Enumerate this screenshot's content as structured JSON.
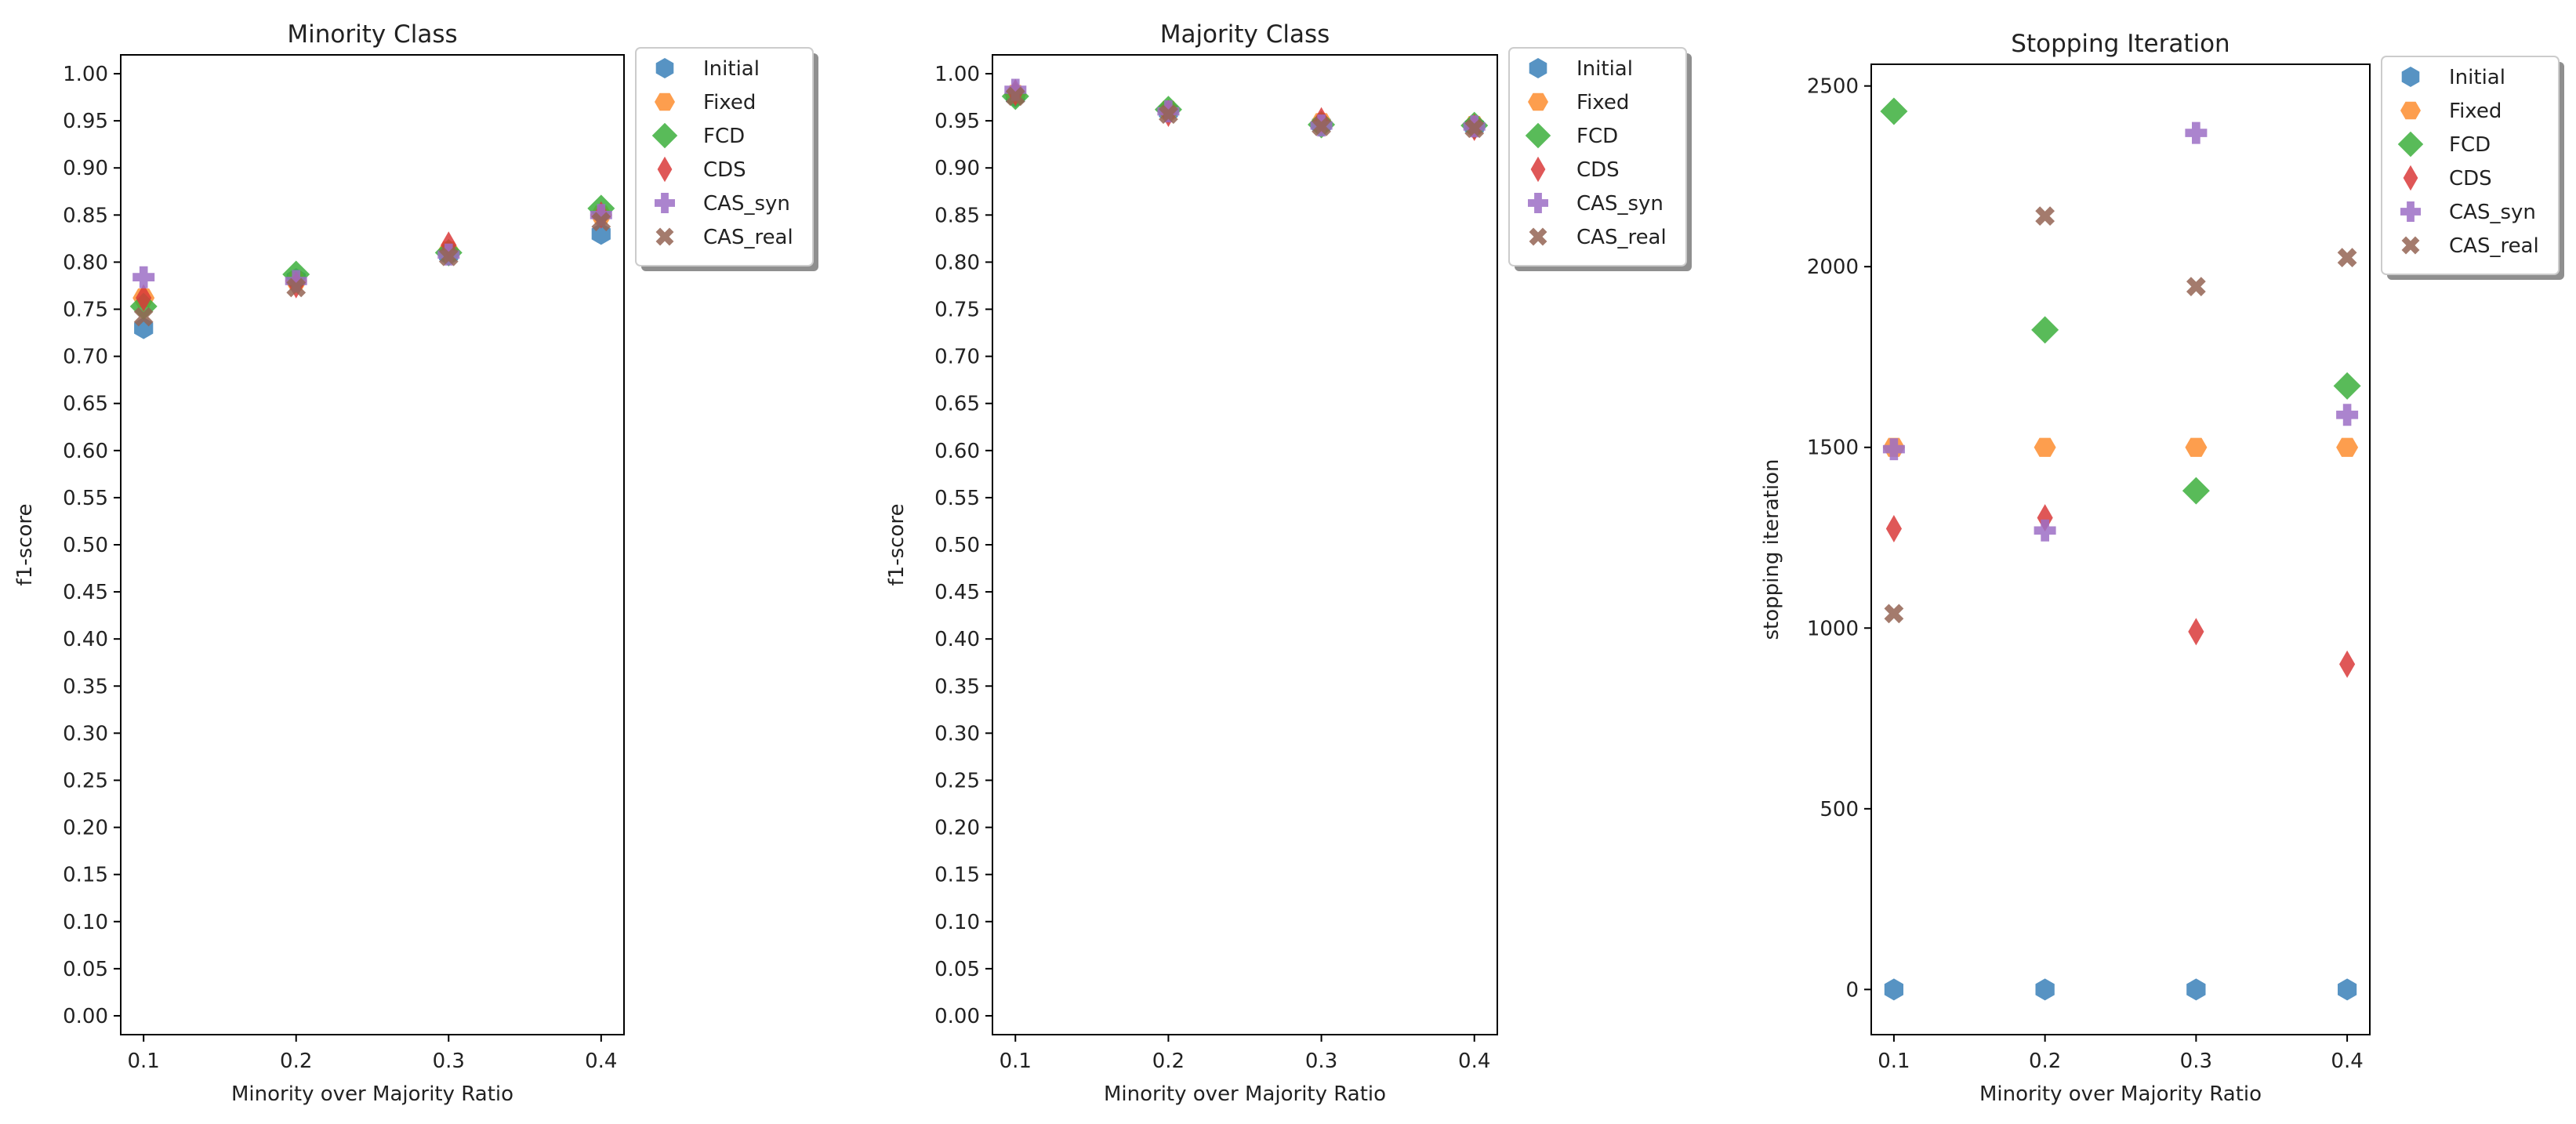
{
  "figure": {
    "marker_order": [
      "Initial",
      "Fixed",
      "FCD",
      "CDS",
      "CAS_syn",
      "CAS_real"
    ]
  },
  "styles": {
    "Initial": {
      "color": "#3a80b8",
      "marker": "hexagon-pointy"
    },
    "Fixed": {
      "color": "#fd8d2f",
      "marker": "hexagon-flat"
    },
    "FCD": {
      "color": "#3caf3c",
      "marker": "diamond"
    },
    "CDS": {
      "color": "#d93a3a",
      "marker": "thin-diamond"
    },
    "CAS_syn": {
      "color": "#9c6ec6",
      "marker": "plus"
    },
    "CAS_real": {
      "color": "#946454",
      "marker": "x"
    }
  },
  "chart_data": [
    {
      "type": "scatter",
      "title": "Minority Class",
      "xlabel": "Minority over Majority Ratio",
      "ylabel": "f1-score",
      "xlim": [
        0.085,
        0.415
      ],
      "ylim": [
        -0.02,
        1.02
      ],
      "xticks": [
        "0.1",
        "0.2",
        "0.3",
        "0.4"
      ],
      "yticks": [
        "0.00",
        "0.05",
        "0.10",
        "0.15",
        "0.20",
        "0.25",
        "0.30",
        "0.35",
        "0.40",
        "0.45",
        "0.50",
        "0.55",
        "0.60",
        "0.65",
        "0.70",
        "0.75",
        "0.80",
        "0.85",
        "0.90",
        "0.95",
        "1.00"
      ],
      "legend_location": "outside-top-right",
      "series": [
        {
          "name": "Initial",
          "x": [
            0.1,
            0.2,
            0.3,
            0.4
          ],
          "y": [
            0.73,
            0.782,
            0.808,
            0.83
          ]
        },
        {
          "name": "Fixed",
          "x": [
            0.1,
            0.2,
            0.3,
            0.4
          ],
          "y": [
            0.762,
            0.78,
            0.812,
            0.85
          ]
        },
        {
          "name": "FCD",
          "x": [
            0.1,
            0.2,
            0.3,
            0.4
          ],
          "y": [
            0.753,
            0.787,
            0.81,
            0.857
          ]
        },
        {
          "name": "CDS",
          "x": [
            0.1,
            0.2,
            0.3,
            0.4
          ],
          "y": [
            0.762,
            0.776,
            0.818,
            0.85
          ]
        },
        {
          "name": "CAS_syn",
          "x": [
            0.1,
            0.2,
            0.3,
            0.4
          ],
          "y": [
            0.784,
            0.78,
            0.808,
            0.85
          ]
        },
        {
          "name": "CAS_real",
          "x": [
            0.1,
            0.2,
            0.3,
            0.4
          ],
          "y": [
            0.742,
            0.773,
            0.806,
            0.843
          ]
        }
      ]
    },
    {
      "type": "scatter",
      "title": "Majority Class",
      "xlabel": "Minority over Majority Ratio",
      "ylabel": "f1-score",
      "xlim": [
        0.085,
        0.415
      ],
      "ylim": [
        -0.02,
        1.02
      ],
      "xticks": [
        "0.1",
        "0.2",
        "0.3",
        "0.4"
      ],
      "yticks": [
        "0.00",
        "0.05",
        "0.10",
        "0.15",
        "0.20",
        "0.25",
        "0.30",
        "0.35",
        "0.40",
        "0.45",
        "0.50",
        "0.55",
        "0.60",
        "0.65",
        "0.70",
        "0.75",
        "0.80",
        "0.85",
        "0.90",
        "0.95",
        "1.00"
      ],
      "legend_location": "outside-top-right",
      "series": [
        {
          "name": "Initial",
          "x": [
            0.1,
            0.2,
            0.3,
            0.4
          ],
          "y": [
            0.976,
            0.96,
            0.946,
            0.944
          ]
        },
        {
          "name": "Fixed",
          "x": [
            0.1,
            0.2,
            0.3,
            0.4
          ],
          "y": [
            0.978,
            0.961,
            0.948,
            0.945
          ]
        },
        {
          "name": "FCD",
          "x": [
            0.1,
            0.2,
            0.3,
            0.4
          ],
          "y": [
            0.976,
            0.962,
            0.946,
            0.945
          ]
        },
        {
          "name": "CDS",
          "x": [
            0.1,
            0.2,
            0.3,
            0.4
          ],
          "y": [
            0.98,
            0.958,
            0.95,
            0.943
          ]
        },
        {
          "name": "CAS_syn",
          "x": [
            0.1,
            0.2,
            0.3,
            0.4
          ],
          "y": [
            0.983,
            0.96,
            0.945,
            0.944
          ]
        },
        {
          "name": "CAS_real",
          "x": [
            0.1,
            0.2,
            0.3,
            0.4
          ],
          "y": [
            0.976,
            0.957,
            0.944,
            0.942
          ]
        }
      ]
    },
    {
      "type": "scatter",
      "title": "Stopping Iteration",
      "xlabel": "Minority over Majority Ratio",
      "ylabel": "stopping iteration",
      "xlim": [
        0.085,
        0.415
      ],
      "ylim": [
        -125,
        2560
      ],
      "xticks": [
        "0.1",
        "0.2",
        "0.3",
        "0.4"
      ],
      "yticks": [
        "0",
        "500",
        "1000",
        "1500",
        "2000",
        "2500"
      ],
      "legend_location": "outside-top-right",
      "series": [
        {
          "name": "Initial",
          "x": [
            0.1,
            0.2,
            0.3,
            0.4
          ],
          "y": [
            0,
            0,
            0,
            0
          ]
        },
        {
          "name": "Fixed",
          "x": [
            0.1,
            0.2,
            0.3,
            0.4
          ],
          "y": [
            1500,
            1500,
            1500,
            1500
          ]
        },
        {
          "name": "FCD",
          "x": [
            0.1,
            0.2,
            0.3,
            0.4
          ],
          "y": [
            2430,
            1825,
            1380,
            1670
          ]
        },
        {
          "name": "CDS",
          "x": [
            0.1,
            0.2,
            0.3,
            0.4
          ],
          "y": [
            1275,
            1305,
            990,
            900
          ]
        },
        {
          "name": "CAS_syn",
          "x": [
            0.1,
            0.2,
            0.3,
            0.4
          ],
          "y": [
            1495,
            1270,
            2370,
            1590
          ]
        },
        {
          "name": "CAS_real",
          "x": [
            0.1,
            0.2,
            0.3,
            0.4
          ],
          "y": [
            1040,
            2140,
            1945,
            2025
          ]
        }
      ]
    }
  ]
}
